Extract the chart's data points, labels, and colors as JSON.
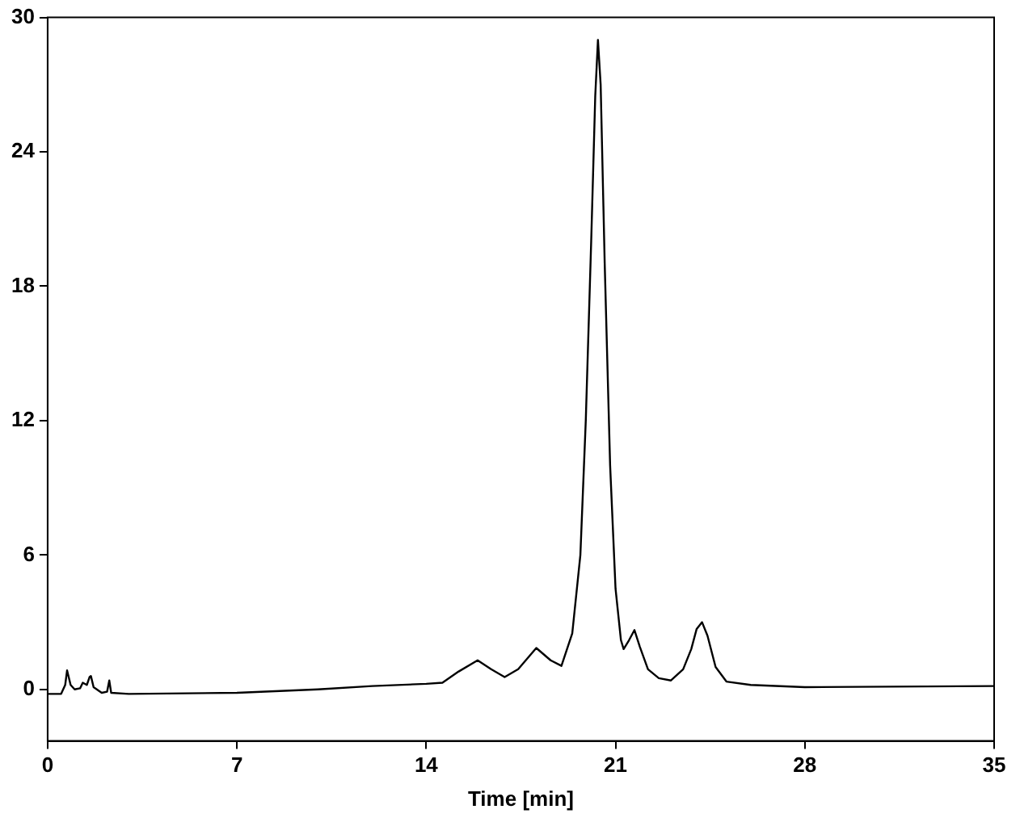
{
  "chart_data": {
    "type": "line",
    "xlabel": "Time [min]",
    "xlim": [
      0,
      35
    ],
    "xticks": [
      0,
      7,
      14,
      21,
      28,
      35
    ],
    "ylim": [
      -2.3,
      30
    ],
    "yticks": [
      0,
      6,
      12,
      18,
      24,
      30
    ],
    "grid": false,
    "legend": false,
    "marker": "none",
    "line_style": "solid",
    "series": [
      {
        "color": "#000000",
        "x": [
          0,
          0.5,
          0.65,
          0.72,
          0.85,
          1.0,
          1.2,
          1.3,
          1.45,
          1.55,
          1.6,
          1.7,
          2.0,
          2.2,
          2.28,
          2.35,
          3,
          7,
          10,
          12,
          14,
          14.6,
          15.2,
          15.9,
          16.4,
          16.9,
          17.4,
          18.07,
          18.6,
          19.0,
          19.4,
          19.7,
          19.9,
          20.1,
          20.25,
          20.35,
          20.45,
          20.6,
          20.8,
          21.0,
          21.2,
          21.3,
          21.5,
          21.7,
          21.9,
          22.2,
          22.6,
          23.05,
          23.5,
          23.8,
          24.0,
          24.2,
          24.4,
          24.7,
          25.1,
          26,
          28,
          35
        ],
        "values": [
          -0.2,
          -0.2,
          0.2,
          0.85,
          0.2,
          0,
          0.05,
          0.3,
          0.2,
          0.55,
          0.6,
          0.1,
          -0.15,
          -0.1,
          0.4,
          -0.15,
          -0.2,
          -0.15,
          0,
          0.15,
          0.25,
          0.3,
          0.8,
          1.3,
          0.9,
          0.55,
          0.9,
          1.85,
          1.3,
          1.05,
          2.5,
          6,
          12,
          20,
          26.5,
          29,
          27,
          19,
          10,
          4.5,
          2.2,
          1.8,
          2.2,
          2.65,
          1.9,
          0.9,
          0.5,
          0.4,
          0.9,
          1.8,
          2.7,
          3.0,
          2.4,
          1.0,
          0.35,
          0.2,
          0.1,
          0.15
        ]
      }
    ]
  }
}
